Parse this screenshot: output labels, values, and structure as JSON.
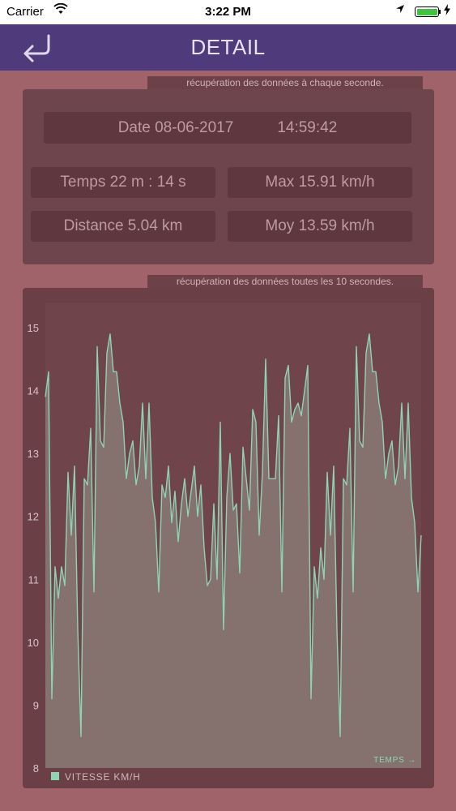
{
  "status_bar": {
    "carrier": "Carrier",
    "time": "3:22 PM",
    "icons": [
      "wifi-icon",
      "location-arrow-icon",
      "battery-icon",
      "charging-bolt-icon"
    ],
    "battery_color": "#3ec43e"
  },
  "nav": {
    "title": "DETAIL",
    "back_icon": "return-arrow-icon",
    "background": "#4f3a7c"
  },
  "summary": {
    "caption": "récupération des données à chaque seconde.",
    "date_label": "Date 08-06-2017",
    "time_of_day": "14:59:42",
    "duration": "Temps 22 m : 14 s",
    "max_speed": "Max 15.91 km/h",
    "distance": "Distance 5.04 km",
    "avg_speed": "Moy 13.59 km/h"
  },
  "chart_caption": "récupération des données toutes les 10 secondes.",
  "chart_data": {
    "type": "area",
    "title": "",
    "xlabel": "TEMPS →",
    "ylabel": "",
    "ylim": [
      8,
      15.4
    ],
    "yticks": [
      8,
      9,
      10,
      11,
      12,
      13,
      14,
      15
    ],
    "grid": false,
    "legend": "bottom-left",
    "series": [
      {
        "name": "VITESSE KM/H",
        "color": "#8fd3b3",
        "values": [
          13.9,
          14.3,
          9.1,
          11.2,
          10.7,
          11.2,
          10.9,
          12.7,
          11.7,
          12.8,
          10.2,
          8.5,
          12.6,
          12.5,
          13.4,
          10.8,
          14.7,
          13.2,
          13.1,
          14.6,
          14.9,
          14.3,
          14.3,
          13.8,
          13.5,
          12.6,
          13.0,
          13.2,
          12.5,
          12.8,
          13.8,
          12.6,
          13.8,
          12.3,
          11.9,
          10.8,
          12.5,
          12.3,
          12.8,
          11.9,
          12.4,
          11.6,
          12.2,
          12.6,
          12.0,
          12.4,
          12.8,
          12.0,
          12.5,
          11.5,
          10.9,
          11.0,
          12.2,
          11.0,
          13.5,
          10.2,
          12.3,
          13.0,
          12.1,
          12.2,
          11.1,
          13.1,
          12.6,
          12.1,
          13.7,
          13.5,
          11.7,
          12.7,
          14.5,
          12.6,
          12.6,
          12.6,
          13.6,
          10.8,
          14.2,
          14.4,
          13.5,
          13.7,
          13.8,
          13.6,
          14.0,
          14.4,
          9.1,
          11.2,
          10.7,
          11.5,
          11.0,
          12.7,
          11.7,
          12.8,
          10.2,
          8.5,
          12.6,
          12.5,
          13.4,
          10.8,
          14.7,
          13.2,
          13.1,
          14.6,
          14.9,
          14.3,
          14.3,
          13.8,
          13.5,
          12.6,
          13.0,
          13.2,
          12.5,
          12.8,
          13.8,
          12.6,
          13.8,
          12.3,
          11.9,
          10.8,
          11.7
        ]
      }
    ]
  }
}
